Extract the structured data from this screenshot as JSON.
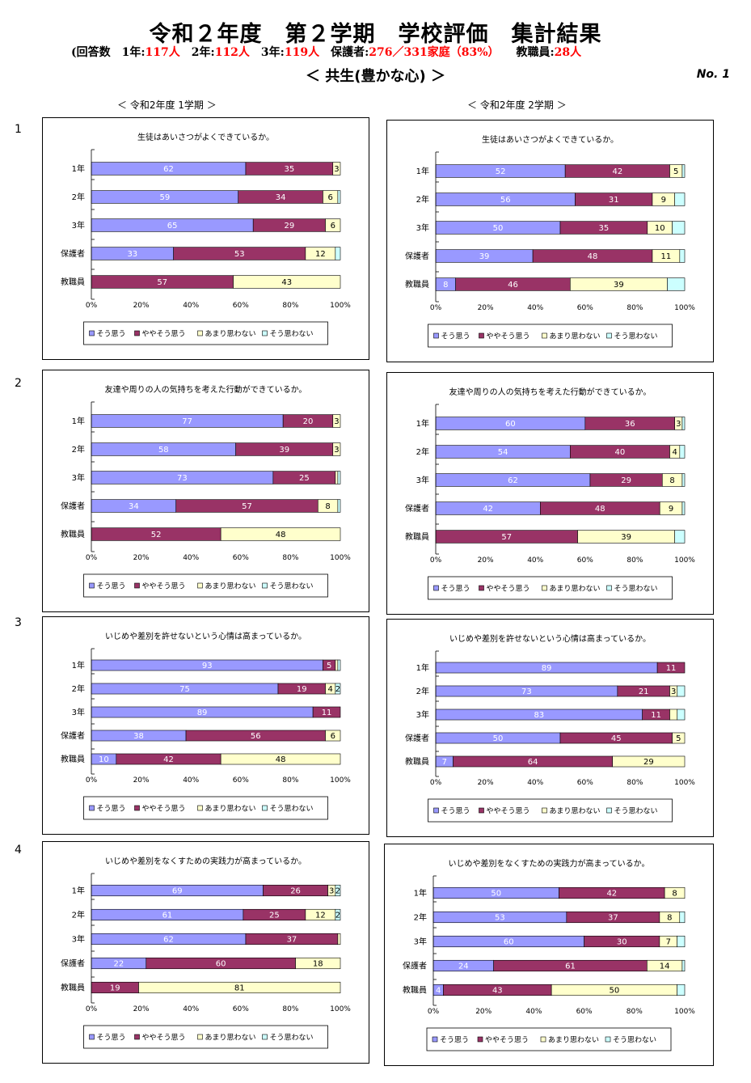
{
  "header": {
    "title": "令和２年度　第２学期　学校評価　集計結果",
    "counts": {
      "prefix": "(回答数　1年:",
      "g1": "117人",
      "g2_label": "　2年:",
      "g2": "112人",
      "g3_label": "　3年:",
      "g3": "119人",
      "parents_label": "　保護者:",
      "parents": "276／331家庭（83%）",
      "staff_label": "　　教職員:",
      "staff": "28人"
    },
    "section": "＜ 共生(豊かな心) ＞",
    "doc_no": "No. 1"
  },
  "columns": {
    "left": "＜ 令和2年度 1学期 ＞",
    "right": "＜ 令和2年度 2学期 ＞"
  },
  "question_numbers": [
    "1",
    "2",
    "3",
    "4"
  ],
  "colors": {
    "agree": "#9999ff",
    "somewhat": "#993366",
    "not_much": "#ffffcc",
    "disagree": "#ccffff"
  },
  "chart_data": [
    {
      "id": "q1-t1",
      "type": "bar",
      "orientation": "horizontal",
      "stacked": "percent",
      "title": "生徒はあいさつがよくできているか。",
      "categories": [
        "1年",
        "2年",
        "3年",
        "保護者",
        "教職員"
      ],
      "series": [
        {
          "name": "そう思う",
          "values": [
            62,
            59,
            65,
            33,
            0
          ],
          "labels": [
            "62",
            "59",
            "65",
            "33",
            "0"
          ]
        },
        {
          "name": "ややそう思う",
          "values": [
            35,
            34,
            29,
            53,
            57
          ],
          "labels": [
            "35",
            "34",
            "29",
            "53",
            "57"
          ]
        },
        {
          "name": "あまり思わない",
          "values": [
            3,
            6,
            6,
            12,
            43
          ],
          "labels": [
            "3",
            "6",
            "6",
            "12",
            "43"
          ]
        },
        {
          "name": "そう思わない",
          "values": [
            0,
            1,
            0,
            2,
            0
          ],
          "labels": [
            "",
            "",
            "",
            "",
            ""
          ]
        }
      ],
      "x_ticks": [
        "0%",
        "20%",
        "40%",
        "60%",
        "80%",
        "100%"
      ],
      "xlim": [
        0,
        100
      ],
      "legend": "bottom"
    },
    {
      "id": "q1-t2",
      "type": "bar",
      "orientation": "horizontal",
      "stacked": "percent",
      "title": "生徒はあいさつがよくできているか。",
      "categories": [
        "1年",
        "2年",
        "3年",
        "保護者",
        "教職員"
      ],
      "series": [
        {
          "name": "そう思う",
          "values": [
            52,
            56,
            50,
            39,
            8
          ],
          "labels": [
            "52",
            "56",
            "50",
            "39",
            "8"
          ]
        },
        {
          "name": "ややそう思う",
          "values": [
            42,
            31,
            35,
            48,
            46
          ],
          "labels": [
            "42",
            "31",
            "35",
            "48",
            "46"
          ]
        },
        {
          "name": "あまり思わない",
          "values": [
            5,
            9,
            10,
            11,
            39
          ],
          "labels": [
            "5",
            "9",
            "10",
            "11",
            "39"
          ]
        },
        {
          "name": "そう思わない",
          "values": [
            1,
            4,
            5,
            2,
            7
          ],
          "labels": [
            "",
            "",
            "",
            "",
            ""
          ]
        }
      ],
      "x_ticks": [
        "0%",
        "20%",
        "40%",
        "60%",
        "80%",
        "100%"
      ],
      "xlim": [
        0,
        100
      ],
      "legend": "bottom"
    },
    {
      "id": "q2-t1",
      "type": "bar",
      "orientation": "horizontal",
      "stacked": "percent",
      "title": "友達や周りの人の気持ちを考えた行動ができているか。",
      "categories": [
        "1年",
        "2年",
        "3年",
        "保護者",
        "教職員"
      ],
      "series": [
        {
          "name": "そう思う",
          "values": [
            77,
            58,
            73,
            34,
            0
          ],
          "labels": [
            "77",
            "58",
            "73",
            "34",
            "0"
          ]
        },
        {
          "name": "ややそう思う",
          "values": [
            20,
            39,
            25,
            57,
            52
          ],
          "labels": [
            "20",
            "39",
            "25",
            "57",
            "52"
          ]
        },
        {
          "name": "あまり思わない",
          "values": [
            3,
            3,
            1,
            8,
            48
          ],
          "labels": [
            "3",
            "3",
            "",
            "8",
            "48"
          ]
        },
        {
          "name": "そう思わない",
          "values": [
            0,
            0,
            1,
            1,
            0
          ],
          "labels": [
            "",
            "",
            "",
            "",
            ""
          ]
        }
      ],
      "x_ticks": [
        "0%",
        "20%",
        "40%",
        "60%",
        "80%",
        "100%"
      ],
      "xlim": [
        0,
        100
      ],
      "legend": "bottom"
    },
    {
      "id": "q2-t2",
      "type": "bar",
      "orientation": "horizontal",
      "stacked": "percent",
      "title": "友達や周りの人の気持ちを考えた行動ができているか。",
      "categories": [
        "1年",
        "2年",
        "3年",
        "保護者",
        "教職員"
      ],
      "series": [
        {
          "name": "そう思う",
          "values": [
            60,
            54,
            62,
            42,
            0
          ],
          "labels": [
            "60",
            "54",
            "62",
            "42",
            "0"
          ]
        },
        {
          "name": "ややそう思う",
          "values": [
            36,
            40,
            29,
            48,
            57
          ],
          "labels": [
            "36",
            "40",
            "29",
            "48",
            "57"
          ]
        },
        {
          "name": "あまり思わない",
          "values": [
            3,
            4,
            8,
            9,
            39
          ],
          "labels": [
            "3",
            "4",
            "8",
            "9",
            "39"
          ]
        },
        {
          "name": "そう思わない",
          "values": [
            1,
            2,
            1,
            1,
            4
          ],
          "labels": [
            "",
            "",
            "",
            "",
            ""
          ]
        }
      ],
      "x_ticks": [
        "0%",
        "20%",
        "40%",
        "60%",
        "80%",
        "100%"
      ],
      "xlim": [
        0,
        100
      ],
      "legend": "bottom"
    },
    {
      "id": "q3-t1",
      "type": "bar",
      "orientation": "horizontal",
      "stacked": "percent",
      "title": "いじめや差別を許せないという心情は高まっているか。",
      "categories": [
        "1年",
        "2年",
        "3年",
        "保護者",
        "教職員"
      ],
      "series": [
        {
          "name": "そう思う",
          "values": [
            93,
            75,
            89,
            38,
            10
          ],
          "labels": [
            "93",
            "75",
            "89",
            "38",
            "10"
          ]
        },
        {
          "name": "ややそう思う",
          "values": [
            5,
            19,
            11,
            56,
            42
          ],
          "labels": [
            "5",
            "19",
            "11",
            "56",
            "42"
          ]
        },
        {
          "name": "あまり思わない",
          "values": [
            1,
            4,
            0,
            6,
            48
          ],
          "labels": [
            "",
            "4",
            "",
            "6",
            "48"
          ]
        },
        {
          "name": "そう思わない",
          "values": [
            1,
            2,
            0,
            0,
            0
          ],
          "labels": [
            "",
            "2",
            "",
            "",
            ""
          ]
        }
      ],
      "x_ticks": [
        "0%",
        "20%",
        "40%",
        "60%",
        "80%",
        "100%"
      ],
      "xlim": [
        0,
        100
      ],
      "legend": "bottom"
    },
    {
      "id": "q3-t2",
      "type": "bar",
      "orientation": "horizontal",
      "stacked": "percent",
      "title": "いじめや差別を許せないという心情は高まっているか。",
      "categories": [
        "1年",
        "2年",
        "3年",
        "保護者",
        "教職員"
      ],
      "series": [
        {
          "name": "そう思う",
          "values": [
            89,
            73,
            83,
            50,
            7
          ],
          "labels": [
            "89",
            "73",
            "83",
            "50",
            "7"
          ]
        },
        {
          "name": "ややそう思う",
          "values": [
            11,
            21,
            11,
            45,
            64
          ],
          "labels": [
            "11",
            "21",
            "11",
            "45",
            "64"
          ]
        },
        {
          "name": "あまり思わない",
          "values": [
            0,
            3,
            3,
            5,
            29
          ],
          "labels": [
            "",
            "3",
            "",
            "5",
            "29"
          ]
        },
        {
          "name": "そう思わない",
          "values": [
            0,
            3,
            3,
            0,
            0
          ],
          "labels": [
            "",
            "",
            "",
            "",
            ""
          ]
        }
      ],
      "x_ticks": [
        "0%",
        "20%",
        "40%",
        "60%",
        "80%",
        "100%"
      ],
      "xlim": [
        0,
        100
      ],
      "legend": "bottom"
    },
    {
      "id": "q4-t1",
      "type": "bar",
      "orientation": "horizontal",
      "stacked": "percent",
      "title": "いじめや差別をなくすための実践力が高まっているか。",
      "categories": [
        "1年",
        "2年",
        "3年",
        "保護者",
        "教職員"
      ],
      "series": [
        {
          "name": "そう思う",
          "values": [
            69,
            61,
            62,
            22,
            0
          ],
          "labels": [
            "69",
            "61",
            "62",
            "22",
            "0"
          ]
        },
        {
          "name": "ややそう思う",
          "values": [
            26,
            25,
            37,
            60,
            19
          ],
          "labels": [
            "26",
            "25",
            "37",
            "60",
            "19"
          ]
        },
        {
          "name": "あまり思わない",
          "values": [
            3,
            12,
            1,
            18,
            81
          ],
          "labels": [
            "3",
            "12",
            "",
            "18",
            "81"
          ]
        },
        {
          "name": "そう思わない",
          "values": [
            2,
            2,
            0,
            0,
            0
          ],
          "labels": [
            "2",
            "2",
            "",
            "",
            ""
          ]
        }
      ],
      "x_ticks": [
        "0%",
        "20%",
        "40%",
        "60%",
        "80%",
        "100%"
      ],
      "xlim": [
        0,
        100
      ],
      "legend": "bottom"
    },
    {
      "id": "q4-t2",
      "type": "bar",
      "orientation": "horizontal",
      "stacked": "percent",
      "title": "いじめや差別をなくすための実践力が高まっているか。",
      "categories": [
        "1年",
        "2年",
        "3年",
        "保護者",
        "教職員"
      ],
      "series": [
        {
          "name": "そう思う",
          "values": [
            50,
            53,
            60,
            24,
            4
          ],
          "labels": [
            "50",
            "53",
            "60",
            "24",
            "4"
          ]
        },
        {
          "name": "ややそう思う",
          "values": [
            42,
            37,
            30,
            61,
            43
          ],
          "labels": [
            "42",
            "37",
            "30",
            "61",
            "43"
          ]
        },
        {
          "name": "あまり思わない",
          "values": [
            8,
            8,
            7,
            14,
            50
          ],
          "labels": [
            "8",
            "8",
            "7",
            "14",
            "50"
          ]
        },
        {
          "name": "そう思わない",
          "values": [
            0,
            2,
            3,
            1,
            3
          ],
          "labels": [
            "",
            "",
            "",
            "",
            ""
          ]
        }
      ],
      "x_ticks": [
        "0%",
        "20%",
        "40%",
        "60%",
        "80%",
        "100%"
      ],
      "xlim": [
        0,
        100
      ],
      "legend": "bottom"
    }
  ]
}
